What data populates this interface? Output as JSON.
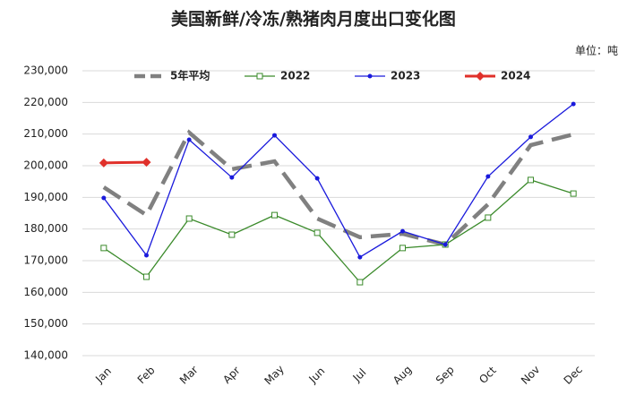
{
  "chart_data": {
    "type": "line",
    "title": "美国新鲜/冷冻/熟猪肉月度出口变化图",
    "unit": "单位：吨",
    "categories": [
      "Jan",
      "Feb",
      "Mar",
      "Apr",
      "May",
      "Jun",
      "Jul",
      "Aug",
      "Sep",
      "Oct",
      "Nov",
      "Dec"
    ],
    "series": [
      {
        "name": "5年平均",
        "color": "#808080",
        "style": "dash",
        "values": [
          193200,
          184400,
          210500,
          198900,
          201400,
          183300,
          177400,
          178500,
          175100,
          187800,
          206500,
          209900
        ]
      },
      {
        "name": "2022",
        "color": "#3a8a2a",
        "style": "square",
        "values": [
          174000,
          164900,
          183300,
          178200,
          184400,
          178800,
          163200,
          174000,
          175100,
          183600,
          195500,
          191200
        ]
      },
      {
        "name": "2023",
        "color": "#1a1adc",
        "style": "dot",
        "values": [
          189800,
          171700,
          208200,
          196300,
          209600,
          196000,
          171100,
          179300,
          175100,
          196600,
          209100,
          219500
        ]
      },
      {
        "name": "2024",
        "color": "#e0302a",
        "style": "diamond",
        "values": [
          200900,
          201100,
          null,
          null,
          null,
          null,
          null,
          null,
          null,
          null,
          null,
          null
        ]
      }
    ],
    "ylim": [
      140000,
      230000
    ],
    "yticks": [
      {
        "value": 140000,
        "label": "140,000"
      },
      {
        "value": 150000,
        "label": "150,000"
      },
      {
        "value": 160000,
        "label": "160,000"
      },
      {
        "value": 170000,
        "label": "170,000"
      },
      {
        "value": 180000,
        "label": "180,000"
      },
      {
        "value": 190000,
        "label": "190,000"
      },
      {
        "value": 200000,
        "label": "200,000"
      },
      {
        "value": 210000,
        "label": "210,000"
      },
      {
        "value": 220000,
        "label": "220,000"
      },
      {
        "value": 230000,
        "label": "230,000"
      }
    ],
    "grid": true
  }
}
